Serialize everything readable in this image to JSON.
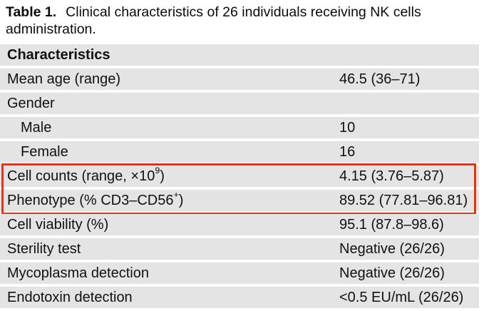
{
  "title": {
    "label": "Table 1.",
    "text": "Clinical characteristics of 26 individuals receiving NK cells administration."
  },
  "table": {
    "header": "Characteristics",
    "row_bg": "#e4e4e4",
    "highlight_color": "#e8340c",
    "rows": [
      {
        "label": "Mean age (range)",
        "value": "46.5 (36–71)",
        "indent": false,
        "boxed": false
      },
      {
        "label": "Gender",
        "value": "",
        "indent": false,
        "boxed": false
      },
      {
        "label": "Male",
        "value": "10",
        "indent": true,
        "boxed": false
      },
      {
        "label": "Female",
        "value": "16",
        "indent": true,
        "boxed": false
      },
      {
        "label": "Cell counts (range, ×10^{9})",
        "value": "4.15 (3.76–5.87)",
        "indent": false,
        "boxed": true
      },
      {
        "label": "Phenotype (% CD3–CD56^{+})",
        "value": "89.52 (77.81–96.81)",
        "indent": false,
        "boxed": true
      },
      {
        "label": "Cell viability (%)",
        "value": "95.1 (87.8–98.6)",
        "indent": false,
        "boxed": false
      },
      {
        "label": "Sterility test",
        "value": "Negative (26/26)",
        "indent": false,
        "boxed": false
      },
      {
        "label": "Mycoplasma detection",
        "value": "Negative (26/26)",
        "indent": false,
        "boxed": false
      },
      {
        "label": "Endotoxin detection",
        "value": "<0.5 EU/mL (26/26)",
        "indent": false,
        "boxed": false
      }
    ]
  }
}
